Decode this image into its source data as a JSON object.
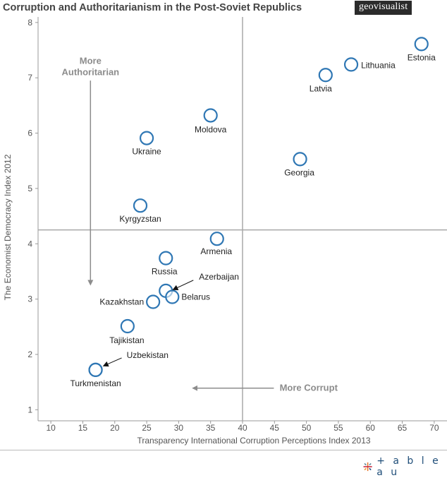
{
  "header": {
    "title": "Corruption and Authoritarianism in the Post-Soviet Republics",
    "badge": "geovisualist"
  },
  "footer": {
    "brand": "+ a b l e a u",
    "brand_icon": "tableau-logo-icon"
  },
  "colors": {
    "marker": "#2f77b4",
    "axis_line": "#999999",
    "reference_line": "#a8a8a8",
    "annotation": "#8c8c8c",
    "text": "#333333"
  },
  "chart_data": {
    "type": "scatter",
    "xlabel": "Transparency International Corruption Perceptions Index 2013",
    "ylabel": "The Economist Democracy Index 2012",
    "xlim": [
      8,
      72
    ],
    "ylim": [
      0.8,
      8.1
    ],
    "x_ticks": [
      10,
      15,
      20,
      25,
      30,
      35,
      40,
      45,
      50,
      55,
      60,
      65,
      70
    ],
    "y_ticks": [
      1,
      2,
      3,
      4,
      5,
      6,
      7,
      8
    ],
    "reference_lines": {
      "x": 40,
      "y": 4.25
    },
    "points": [
      {
        "name": "Estonia",
        "x": 68,
        "y": 7.61
      },
      {
        "name": "Lithuania",
        "x": 57,
        "y": 7.24
      },
      {
        "name": "Latvia",
        "x": 53,
        "y": 7.05
      },
      {
        "name": "Moldova",
        "x": 35,
        "y": 6.32
      },
      {
        "name": "Ukraine",
        "x": 25,
        "y": 5.91
      },
      {
        "name": "Georgia",
        "x": 49,
        "y": 5.53
      },
      {
        "name": "Kyrgyzstan",
        "x": 24,
        "y": 4.69
      },
      {
        "name": "Armenia",
        "x": 36,
        "y": 4.09
      },
      {
        "name": "Russia",
        "x": 28,
        "y": 3.74
      },
      {
        "name": "Azerbaijan",
        "x": 28,
        "y": 3.15
      },
      {
        "name": "Belarus",
        "x": 29,
        "y": 3.04
      },
      {
        "name": "Kazakhstan",
        "x": 26,
        "y": 2.95
      },
      {
        "name": "Tajikistan",
        "x": 22,
        "y": 2.51
      },
      {
        "name": "Uzbekistan",
        "x": 17,
        "y": 1.72
      },
      {
        "name": "Turkmenistan",
        "x": 17,
        "y": 1.72
      }
    ],
    "annotations": [
      {
        "text_lines": [
          "More",
          "Authoritarian"
        ],
        "direction": "down"
      },
      {
        "text_lines": [
          "More Corrupt"
        ],
        "direction": "left"
      }
    ]
  }
}
